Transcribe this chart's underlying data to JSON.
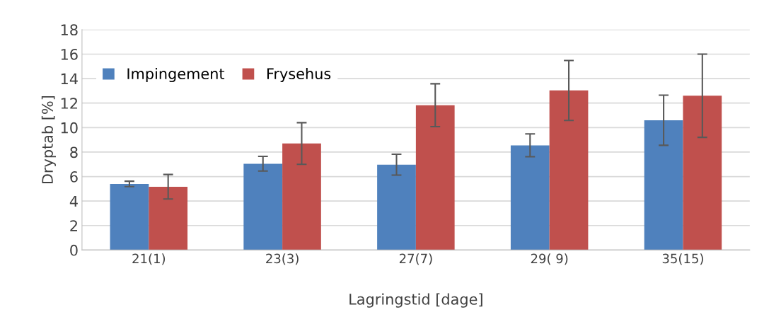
{
  "chart_data": {
    "type": "bar",
    "xlabel": "Lagringstid [dage]",
    "ylabel": "Dryptab [%]",
    "categories": [
      "21(1)",
      "23(3)",
      "27(7)",
      "29( 9)",
      "35(15)"
    ],
    "series": [
      {
        "name": "Impingement",
        "color": "#4f81bd",
        "values": [
          5.4,
          7.05,
          6.97,
          8.55,
          10.6
        ],
        "errors": [
          0.22,
          0.6,
          0.85,
          0.93,
          2.05
        ]
      },
      {
        "name": "Frysehus",
        "color": "#c0504d",
        "values": [
          5.17,
          8.7,
          11.83,
          13.03,
          12.6
        ],
        "errors": [
          1.0,
          1.7,
          1.75,
          2.45,
          3.4
        ]
      }
    ],
    "ylim": [
      0,
      18
    ],
    "yticks": [
      0,
      2,
      4,
      6,
      8,
      10,
      12,
      14,
      16,
      18
    ],
    "grid": "y",
    "legend": "top left"
  }
}
